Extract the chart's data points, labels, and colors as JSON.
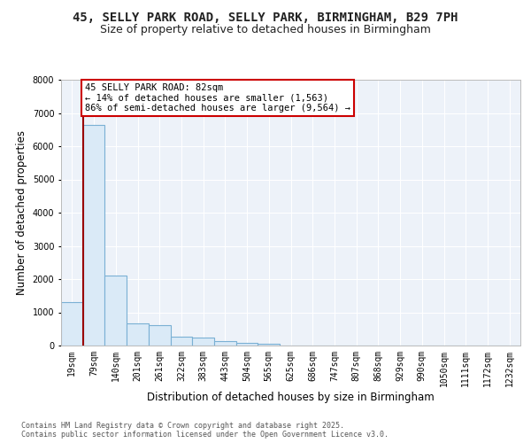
{
  "title_line1": "45, SELLY PARK ROAD, SELLY PARK, BIRMINGHAM, B29 7PH",
  "title_line2": "Size of property relative to detached houses in Birmingham",
  "xlabel": "Distribution of detached houses by size in Birmingham",
  "ylabel": "Number of detached properties",
  "bar_color": "#daeaf7",
  "bar_edge_color": "#7ab0d4",
  "bg_color": "#edf2f9",
  "grid_color": "#ffffff",
  "categories": [
    "19sqm",
    "79sqm",
    "140sqm",
    "201sqm",
    "261sqm",
    "322sqm",
    "383sqm",
    "443sqm",
    "504sqm",
    "565sqm",
    "625sqm",
    "686sqm",
    "747sqm",
    "807sqm",
    "868sqm",
    "929sqm",
    "990sqm",
    "1050sqm",
    "1111sqm",
    "1172sqm",
    "1232sqm"
  ],
  "values": [
    1300,
    6650,
    2100,
    660,
    620,
    270,
    250,
    130,
    90,
    50,
    0,
    0,
    0,
    0,
    0,
    0,
    0,
    0,
    0,
    0,
    0
  ],
  "property_bin_index": 1,
  "annotation_text": "45 SELLY PARK ROAD: 82sqm\n← 14% of detached houses are smaller (1,563)\n86% of semi-detached houses are larger (9,564) →",
  "vline_color": "#990000",
  "annotation_box_edgecolor": "#cc0000",
  "annotation_box_facecolor": "#ffffff",
  "ylim": [
    0,
    8000
  ],
  "yticks": [
    0,
    1000,
    2000,
    3000,
    4000,
    5000,
    6000,
    7000,
    8000
  ],
  "footer_text": "Contains HM Land Registry data © Crown copyright and database right 2025.\nContains public sector information licensed under the Open Government Licence v3.0.",
  "title_fontsize": 10,
  "subtitle_fontsize": 9,
  "axis_label_fontsize": 8.5,
  "tick_fontsize": 7,
  "annotation_fontsize": 7.5,
  "footer_fontsize": 6
}
